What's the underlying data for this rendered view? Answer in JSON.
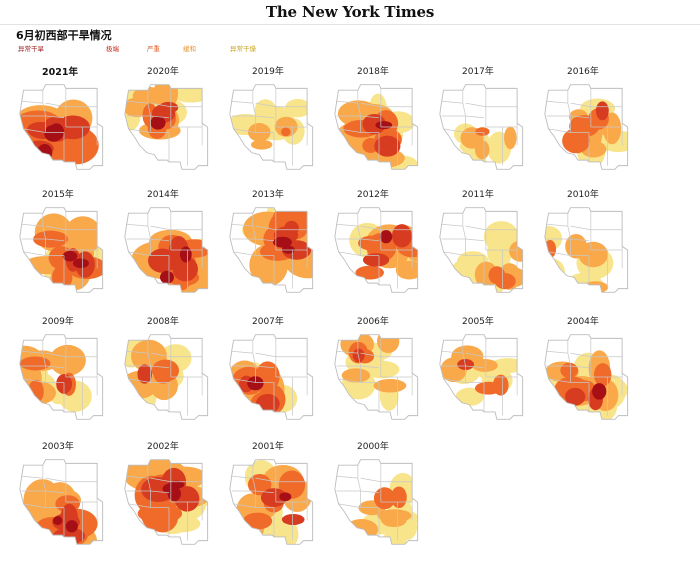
{
  "masthead": {
    "logo_text": "The New York Times"
  },
  "figure": {
    "title": "6月初西部干旱情况"
  },
  "legend": {
    "exceptional": "异常干旱",
    "extreme": "极端",
    "severe": "严重",
    "moderate": "缓和",
    "abnormal": "异常干燥"
  },
  "colors": {
    "exceptional": "#a50f15",
    "extreme": "#d73b20",
    "severe": "#f06a2a",
    "moderate": "#f9a84a",
    "abnormal": "#f8e48a",
    "state_border": "#c8c8c8",
    "outline": "#bdbdbd"
  },
  "maps": [
    {
      "year_label": "2021年",
      "highlight": true,
      "intensity": 0.95
    },
    {
      "year_label": "2020年",
      "highlight": false,
      "intensity": 0.55
    },
    {
      "year_label": "2019年",
      "highlight": false,
      "intensity": 0.12
    },
    {
      "year_label": "2018年",
      "highlight": false,
      "intensity": 0.6
    },
    {
      "year_label": "2017年",
      "highlight": false,
      "intensity": 0.15
    },
    {
      "year_label": "2016年",
      "highlight": false,
      "intensity": 0.45
    },
    {
      "year_label": "2015年",
      "highlight": false,
      "intensity": 0.7
    },
    {
      "year_label": "2014年",
      "highlight": false,
      "intensity": 0.8
    },
    {
      "year_label": "2013年",
      "highlight": false,
      "intensity": 0.78
    },
    {
      "year_label": "2012年",
      "highlight": false,
      "intensity": 0.62
    },
    {
      "year_label": "2011年",
      "highlight": false,
      "intensity": 0.25
    },
    {
      "year_label": "2010年",
      "highlight": false,
      "intensity": 0.2
    },
    {
      "year_label": "2009年",
      "highlight": false,
      "intensity": 0.45
    },
    {
      "year_label": "2008年",
      "highlight": false,
      "intensity": 0.4
    },
    {
      "year_label": "2007年",
      "highlight": false,
      "intensity": 0.65
    },
    {
      "year_label": "2006年",
      "highlight": false,
      "intensity": 0.35
    },
    {
      "year_label": "2005年",
      "highlight": false,
      "intensity": 0.32
    },
    {
      "year_label": "2004年",
      "highlight": false,
      "intensity": 0.62
    },
    {
      "year_label": "2003年",
      "highlight": false,
      "intensity": 0.78
    },
    {
      "year_label": "2002年",
      "highlight": false,
      "intensity": 0.85
    },
    {
      "year_label": "2001年",
      "highlight": false,
      "intensity": 0.6
    },
    {
      "year_label": "2000年",
      "highlight": false,
      "intensity": 0.3
    }
  ]
}
